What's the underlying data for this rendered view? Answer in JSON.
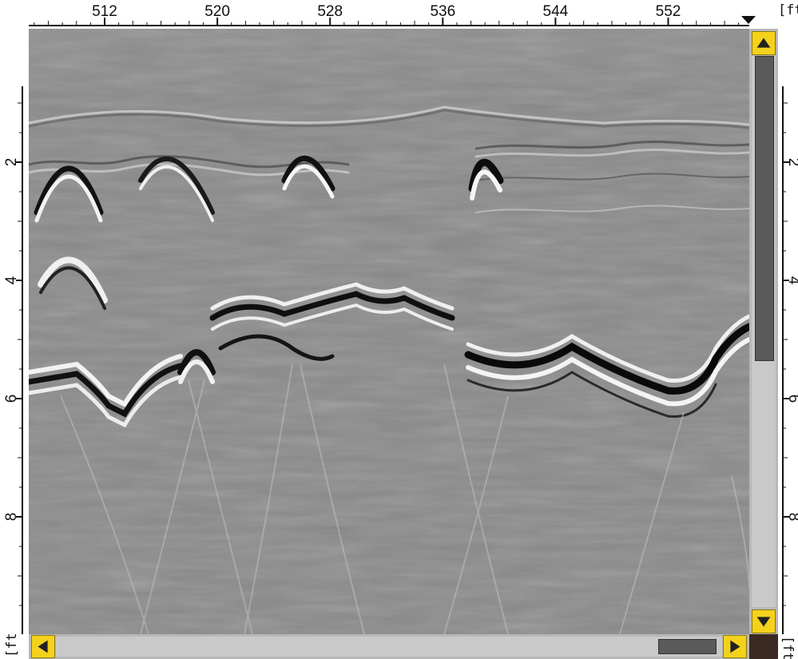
{
  "top_ruler": {
    "unit_label": "[ft]",
    "ticks": [
      {
        "label": "512",
        "value": 512
      },
      {
        "label": "520",
        "value": 520
      },
      {
        "label": "528",
        "value": 528
      },
      {
        "label": "536",
        "value": 536
      },
      {
        "label": "544",
        "value": 544
      },
      {
        "label": "552",
        "value": 552
      }
    ]
  },
  "depth_ruler": {
    "unit_label": "[ft]",
    "ticks": [
      {
        "label": "2",
        "value": 2
      },
      {
        "label": "4",
        "value": 4
      },
      {
        "label": "6",
        "value": 6
      },
      {
        "label": "8",
        "value": 8
      }
    ]
  },
  "vertical_scrollbar": {
    "up_icon": "triangle-up-icon",
    "down_icon": "triangle-down-icon",
    "thumb_start_fraction": 0.0,
    "thumb_end_fraction": 0.55
  },
  "horizontal_scrollbar": {
    "left_icon": "triangle-left-icon",
    "right_icon": "triangle-right-icon",
    "thumb_start_fraction": 0.91,
    "thumb_end_fraction": 1.0
  },
  "colors": {
    "scroll_button": "#f4d21c",
    "scroll_thumb": "#5a5a5a",
    "radargram_background": "#8a8a8a"
  }
}
